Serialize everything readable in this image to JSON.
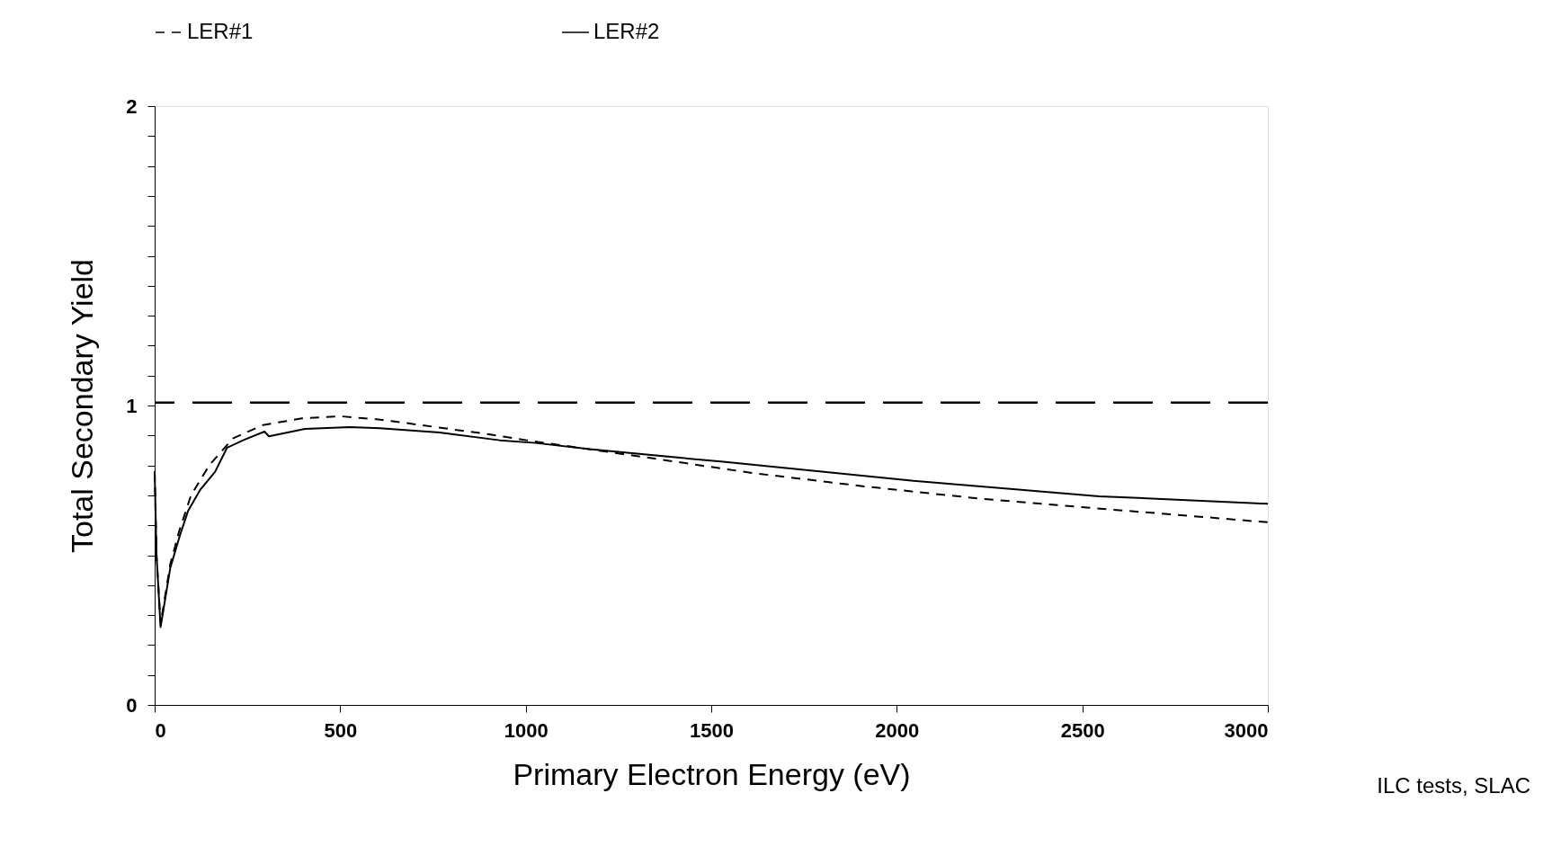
{
  "chart_data": {
    "type": "line",
    "xlabel": "Primary Electron Energy (eV)",
    "ylabel": "Total Secondary Yield",
    "xlim": [
      0,
      3000
    ],
    "xticks": [
      0,
      500,
      1000,
      1500,
      2000,
      2500,
      3000
    ],
    "ylim": [
      0,
      2
    ],
    "yticks": [
      0,
      {
        "value": 0.1,
        "label": null
      },
      {
        "value": 0.2,
        "label": null
      },
      {
        "value": 0.3,
        "label": null
      },
      {
        "value": 0.4,
        "label": null
      },
      {
        "value": 0.5,
        "label": null
      },
      {
        "value": 0.6,
        "label": null
      },
      {
        "value": 0.7,
        "label": null
      },
      {
        "value": 0.8,
        "label": null
      },
      {
        "value": 0.9,
        "label": null
      },
      1,
      {
        "value": 1.1,
        "label": null
      },
      {
        "value": 1.2,
        "label": null
      },
      {
        "value": 1.3,
        "label": null
      },
      {
        "value": 1.4,
        "label": null
      },
      {
        "value": 1.5,
        "label": null
      },
      {
        "value": 1.6,
        "label": null
      },
      {
        "value": 1.7,
        "label": null
      },
      {
        "value": 1.8,
        "label": null
      },
      {
        "value": 1.9,
        "label": null
      },
      2
    ],
    "grid": false,
    "legend": "top",
    "marker": "none",
    "series": [
      {
        "name": "LER#1",
        "color": "#000000",
        "line_style": "dashed",
        "x": [
          0,
          5,
          16,
          42,
          66,
          98,
          147,
          211,
          292,
          397,
          502,
          598,
          699,
          804,
          901,
          1002,
          1318,
          1609,
          1912,
          2216,
          2533,
          2843,
          2950,
          3000
        ],
        "values": [
          0.78,
          0.5,
          0.27,
          0.47,
          0.58,
          0.7,
          0.8,
          0.89,
          0.935,
          0.957,
          0.964,
          0.954,
          0.938,
          0.92,
          0.904,
          0.884,
          0.828,
          0.775,
          0.73,
          0.69,
          0.657,
          0.626,
          0.615,
          0.61
        ]
      },
      {
        "name": "LER#2",
        "color": "#000000",
        "line_style": "solid",
        "x": [
          0,
          5,
          16,
          42,
          66,
          90,
          123,
          163,
          195,
          244,
          296,
          308,
          405,
          526,
          607,
          768,
          930,
          1027,
          1172,
          1532,
          2039,
          2545,
          2982,
          3000
        ],
        "values": [
          0.78,
          0.5,
          0.26,
          0.457,
          0.558,
          0.648,
          0.719,
          0.779,
          0.859,
          0.887,
          0.913,
          0.897,
          0.922,
          0.928,
          0.924,
          0.91,
          0.884,
          0.875,
          0.854,
          0.812,
          0.749,
          0.697,
          0.673,
          0.672
        ]
      }
    ],
    "ref_lines": [
      {
        "axis": "y",
        "value": 1.01,
        "line_style": "dashed",
        "color": "#000000"
      }
    ],
    "annotations": [
      "ILC tests, SLAC"
    ]
  }
}
